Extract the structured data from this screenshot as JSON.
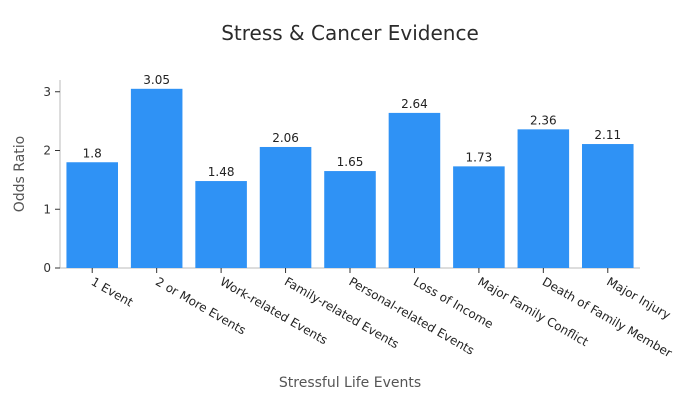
{
  "chart_data": {
    "type": "bar",
    "title": "Stress & Cancer Evidence",
    "xlabel": "Stressful Life Events",
    "ylabel": "Odds Ratio",
    "categories": [
      "1 Event",
      "2 or More Events",
      "Work-related Events",
      "Family-related Events",
      "Personal-related Events",
      "Loss of Income",
      "Major Family Conflict",
      "Death of Family Member",
      "Major Injury"
    ],
    "values": [
      1.8,
      3.05,
      1.48,
      2.06,
      1.65,
      2.64,
      1.73,
      2.36,
      2.11
    ],
    "value_labels": [
      "1.8",
      "3.05",
      "1.48",
      "2.06",
      "1.65",
      "2.64",
      "1.73",
      "2.36",
      "2.11"
    ],
    "ylim": [
      0,
      3.2
    ],
    "yticks": [
      0,
      1,
      2,
      3
    ],
    "bar_color": "#2f92f5",
    "grid": false,
    "legend": "none"
  }
}
